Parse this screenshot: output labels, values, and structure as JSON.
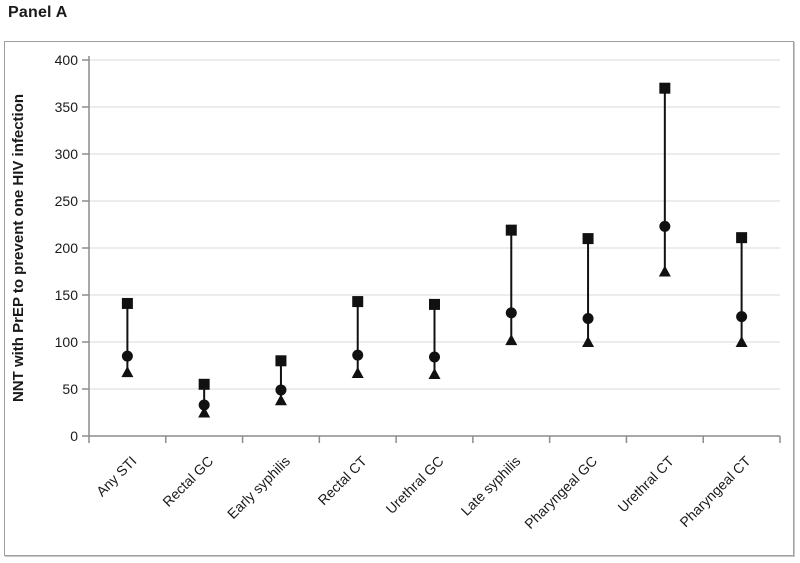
{
  "panel_label": "Panel A",
  "chart_data": {
    "type": "scatter",
    "title": "Panel A",
    "xlabel": "",
    "ylabel": "NNT with PrEP to prevent one HIV infection",
    "ylim": [
      0,
      400
    ],
    "yticks": [
      0,
      50,
      100,
      150,
      200,
      250,
      300,
      350,
      400
    ],
    "grid": true,
    "legend": false,
    "categories": [
      "Any STI",
      "Rectal GC",
      "Early syphilis",
      "Rectal CT",
      "Urethral GC",
      "Late syphilis",
      "Pharyngeal GC",
      "Urethral CT",
      "Pharyngeal CT"
    ],
    "series": [
      {
        "name": "upper-bound",
        "marker": "square",
        "values": [
          141,
          55,
          80,
          143,
          140,
          219,
          210,
          370,
          211
        ]
      },
      {
        "name": "point-estimate",
        "marker": "circle",
        "values": [
          85,
          33,
          49,
          86,
          84,
          131,
          125,
          223,
          127
        ]
      },
      {
        "name": "lower-bound",
        "marker": "triangle-up",
        "values": [
          68,
          25,
          38,
          67,
          66,
          102,
          100,
          175,
          100
        ]
      }
    ],
    "colors": {
      "marker": "#111111",
      "connector": "#111111",
      "grid": "#d9d9d9",
      "axis": "#8c8c8c",
      "frame": "#a0a0a0",
      "text": "#1a1a1a"
    }
  }
}
